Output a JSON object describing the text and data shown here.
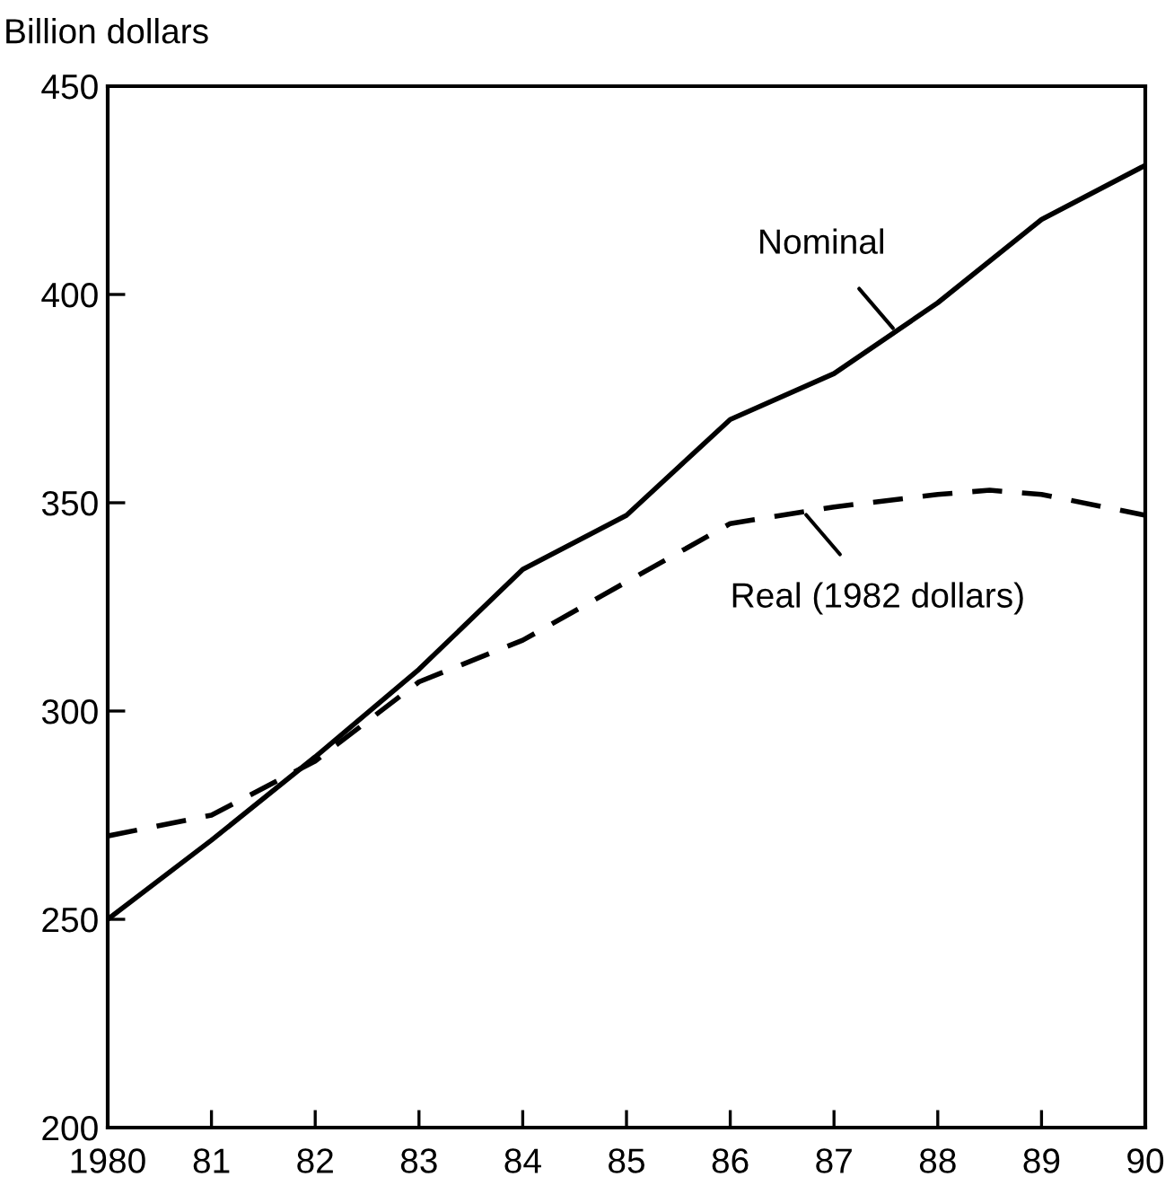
{
  "chart_data": {
    "type": "line",
    "ylabel": "Billion dollars",
    "xlim": [
      1980,
      1990
    ],
    "ylim": [
      200,
      450
    ],
    "xticks": [
      1980,
      {
        "value": 1981,
        "label": "81"
      },
      {
        "value": 1982,
        "label": "82"
      },
      {
        "value": 1983,
        "label": "83"
      },
      {
        "value": 1984,
        "label": "84"
      },
      {
        "value": 1985,
        "label": "85"
      },
      {
        "value": 1986,
        "label": "86"
      },
      {
        "value": 1987,
        "label": "87"
      },
      {
        "value": 1988,
        "label": "88"
      },
      {
        "value": 1989,
        "label": "89"
      },
      {
        "value": 1990,
        "label": "90"
      }
    ],
    "yticks": [
      200,
      250,
      300,
      350,
      400,
      450
    ],
    "grid": false,
    "legend": false,
    "series": [
      {
        "color": "#000000",
        "line_style": "solid",
        "x": [
          1980,
          1981,
          1982,
          1983,
          1984,
          1985,
          1986,
          1987,
          1988,
          1989,
          1990
        ],
        "values": [
          250,
          269,
          289,
          310,
          334,
          347,
          370,
          381,
          398,
          418,
          431
        ]
      },
      {
        "color": "#000000",
        "line_style": "dashed",
        "x": [
          1980,
          1981,
          1982,
          1983,
          1984,
          1985,
          1986,
          1987,
          1988,
          1988.5,
          1989,
          1990
        ],
        "values": [
          270,
          275,
          288,
          307,
          317,
          331,
          345,
          349,
          352,
          353,
          352,
          347
        ]
      }
    ],
    "annotations": [
      {
        "text": "Nominal",
        "x": 1987.6,
        "y": 391
      },
      {
        "text": "Real (1982 dollars)",
        "x": 1986.7,
        "y": 348
      }
    ]
  }
}
